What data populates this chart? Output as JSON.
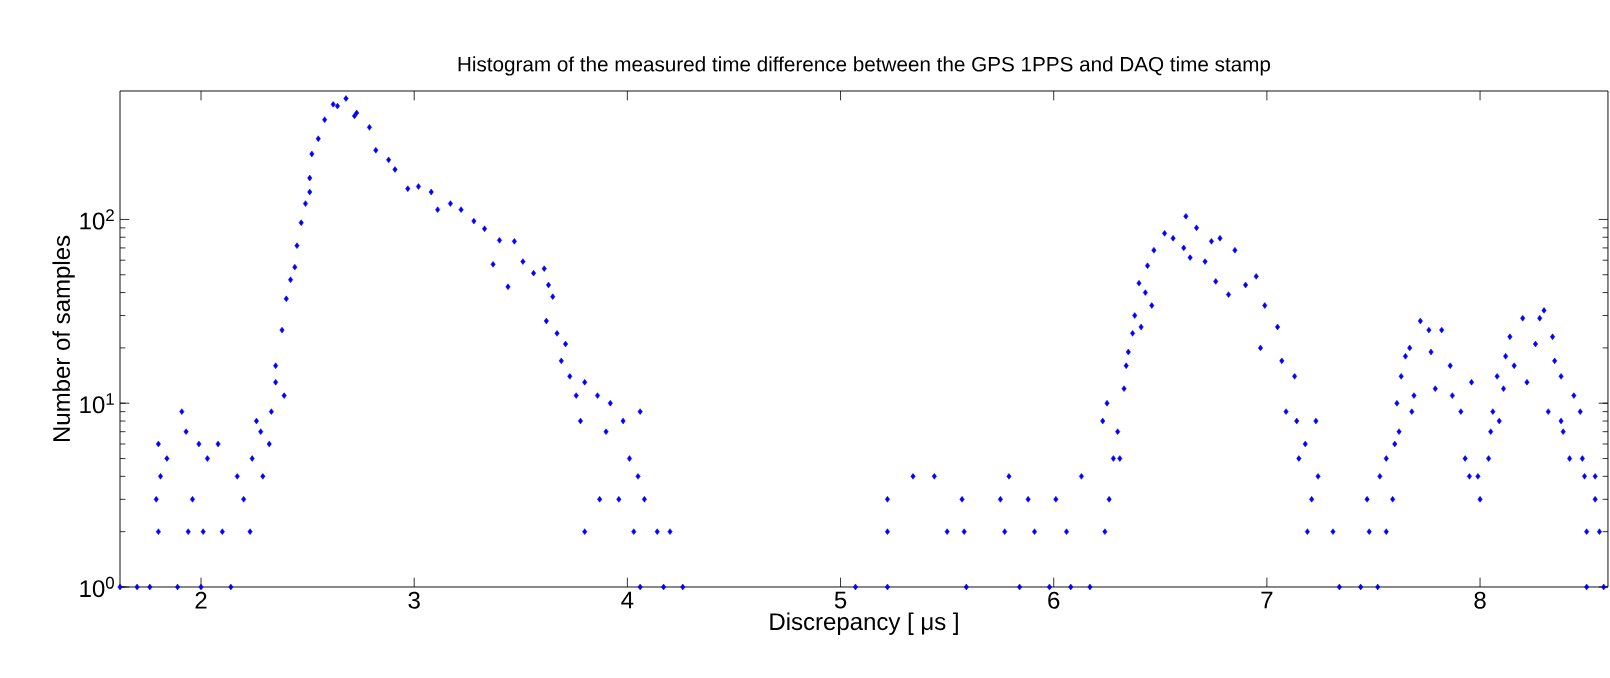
{
  "chart_data": {
    "type": "scatter",
    "title": "Histogram of the measured time difference between the GPS 1PPS and DAQ time stamp",
    "xlabel": "Discrepancy [  μs ]",
    "ylabel": "Number of samples",
    "log": "y",
    "marker": "diamond",
    "color": "#0000ff",
    "xlim": [
      1.62,
      8.6
    ],
    "ylim": [
      1,
      500
    ],
    "xticks": [
      2,
      3,
      4,
      5,
      6,
      7,
      8
    ],
    "yticks": [
      {
        "value": 1,
        "label": "10$^{0}$"
      },
      {
        "value": 10,
        "label": "10$^{1}$"
      },
      {
        "value": 100,
        "label": "10$^{2}$"
      }
    ],
    "x": [
      1.62,
      1.7,
      1.76,
      1.8,
      1.79,
      1.8,
      1.81,
      1.84,
      1.89,
      1.91,
      1.93,
      1.94,
      1.96,
      1.99,
      2.0,
      2.01,
      2.03,
      2.08,
      2.1,
      2.14,
      2.17,
      2.2,
      2.23,
      2.24,
      2.26,
      2.28,
      2.29,
      2.32,
      2.33,
      2.35,
      2.35,
      2.39,
      2.38,
      2.4,
      2.42,
      2.44,
      2.45,
      2.47,
      2.49,
      2.51,
      2.51,
      2.52,
      2.55,
      2.58,
      2.62,
      2.64,
      2.68,
      2.72,
      2.73,
      2.79,
      2.82,
      2.88,
      2.91,
      2.97,
      3.02,
      3.08,
      3.11,
      3.17,
      3.22,
      3.28,
      3.33,
      3.37,
      3.4,
      3.44,
      3.47,
      3.51,
      3.56,
      3.61,
      3.63,
      3.65,
      3.62,
      3.67,
      3.71,
      3.69,
      3.73,
      3.76,
      3.8,
      3.8,
      3.78,
      3.86,
      3.87,
      3.9,
      3.92,
      3.96,
      3.98,
      4.01,
      4.03,
      4.05,
      4.06,
      4.06,
      4.08,
      4.14,
      4.17,
      4.2,
      4.26,
      5.07,
      5.22,
      5.22,
      5.22,
      5.34,
      5.44,
      5.5,
      5.57,
      5.59,
      5.58,
      5.75,
      5.77,
      5.79,
      5.84,
      5.88,
      5.91,
      5.98,
      6.01,
      6.06,
      6.08,
      6.13,
      6.17,
      6.24,
      6.23,
      6.25,
      6.3,
      6.26,
      6.31,
      6.28,
      6.33,
      6.34,
      6.35,
      6.37,
      6.38,
      6.41,
      6.4,
      6.43,
      6.44,
      6.46,
      6.47,
      6.52,
      6.56,
      6.62,
      6.61,
      6.67,
      6.64,
      6.71,
      6.74,
      6.76,
      6.78,
      6.82,
      6.85,
      6.9,
      6.95,
      6.97,
      6.99,
      7.05,
      7.07,
      7.09,
      7.13,
      7.14,
      7.15,
      7.18,
      7.23,
      7.24,
      7.21,
      7.19,
      7.31,
      7.34,
      7.44,
      7.47,
      7.48,
      7.52,
      7.53,
      7.56,
      7.56,
      7.59,
      7.6,
      7.62,
      7.61,
      7.63,
      7.65,
      7.68,
      7.67,
      7.69,
      7.72,
      7.76,
      7.77,
      7.79,
      7.82,
      7.86,
      7.87,
      7.91,
      7.96,
      7.93,
      7.95,
      8.0,
      7.99,
      8.04,
      8.05,
      8.06,
      8.08,
      8.09,
      8.11,
      8.12,
      8.14,
      8.16,
      8.2,
      8.22,
      8.26,
      8.28,
      8.3,
      8.34,
      8.35,
      8.32,
      8.38,
      8.38,
      8.39,
      8.42,
      8.44,
      8.47,
      8.48,
      8.49,
      8.5,
      8.5,
      8.54,
      8.54,
      8.56,
      8.58
    ],
    "values": [
      1,
      1,
      1,
      2,
      3,
      6,
      4,
      5,
      1,
      9,
      7,
      2,
      3,
      6,
      1,
      2,
      5,
      6,
      2,
      1,
      4,
      3,
      2,
      5,
      8,
      7,
      4,
      6,
      9,
      13,
      16,
      11,
      25,
      37,
      47,
      55,
      72,
      96,
      122,
      141,
      168,
      227,
      275,
      349,
      423,
      414,
      455,
      366,
      380,
      317,
      238,
      211,
      187,
      147,
      151,
      141,
      113,
      122,
      113,
      98,
      89,
      57,
      77,
      43,
      76,
      59,
      51,
      54,
      44,
      38,
      28,
      24,
      21,
      17,
      14,
      11,
      13,
      2,
      8,
      11,
      3,
      7,
      10,
      3,
      8,
      5,
      2,
      4,
      9,
      1,
      3,
      2,
      1,
      2,
      1,
      1,
      1,
      2,
      3,
      4,
      4,
      2,
      3,
      1,
      2,
      3,
      2,
      4,
      1,
      3,
      2,
      1,
      3,
      2,
      1,
      4,
      1,
      2,
      8,
      10,
      7,
      3,
      5,
      5,
      12,
      16,
      19,
      24,
      30,
      26,
      45,
      40,
      56,
      34,
      68,
      84,
      79,
      104,
      70,
      90,
      62,
      59,
      76,
      46,
      79,
      39,
      68,
      44,
      49,
      20,
      34,
      26,
      17,
      9,
      14,
      8,
      5,
      6,
      8,
      4,
      3,
      2,
      2,
      1,
      1,
      3,
      2,
      1,
      4,
      2,
      5,
      3,
      6,
      7,
      10,
      14,
      18,
      9,
      20,
      11,
      28,
      25,
      19,
      12,
      25,
      16,
      11,
      9,
      13,
      5,
      4,
      3,
      4,
      5,
      7,
      9,
      14,
      8,
      12,
      18,
      23,
      16,
      29,
      13,
      21,
      29,
      32,
      23,
      17,
      9,
      14,
      8,
      7,
      5,
      11,
      9,
      5,
      4,
      2,
      1,
      3,
      4,
      2,
      1
    ]
  }
}
